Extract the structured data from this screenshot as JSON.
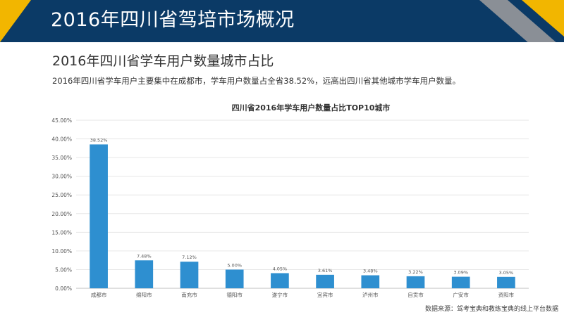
{
  "header": {
    "title": "2016年四川省驾培市场概况"
  },
  "section": {
    "title": "2016年四川省学车用户数量城市占比",
    "summary": "2016年四川省学车用户主要集中在成都市，学车用户数量占全省38.52%，远高出四川省其他城市学车用户数量。"
  },
  "colors": {
    "header_bg": "#0b3a66",
    "accent_yellow": "#f2b600",
    "accent_gray": "#8a8f96",
    "bar": "#2e8fd0"
  },
  "chart_data": {
    "type": "bar",
    "title": "四川省2016年学车用户数量占比TOP10城市",
    "categories": [
      "成都市",
      "绵阳市",
      "南充市",
      "德阳市",
      "遂宁市",
      "宜宾市",
      "泸州市",
      "自贡市",
      "广安市",
      "资阳市"
    ],
    "values": [
      38.52,
      7.48,
      7.12,
      5.0,
      4.05,
      3.61,
      3.48,
      3.22,
      3.09,
      3.05
    ],
    "value_labels": [
      "38.52%",
      "7.48%",
      "7.12%",
      "5.00%",
      "4.05%",
      "3.61%",
      "3.48%",
      "3.22%",
      "3.09%",
      "3.05%"
    ],
    "y_ticks": [
      "0.00%",
      "5.00%",
      "10.00%",
      "15.00%",
      "20.00%",
      "25.00%",
      "30.00%",
      "35.00%",
      "40.00%",
      "45.00%"
    ],
    "ylim": [
      0,
      45
    ],
    "grid": true,
    "legend": "none"
  },
  "footer": {
    "source": "数据来源：驾考宝典和教练宝典的线上平台数据"
  }
}
